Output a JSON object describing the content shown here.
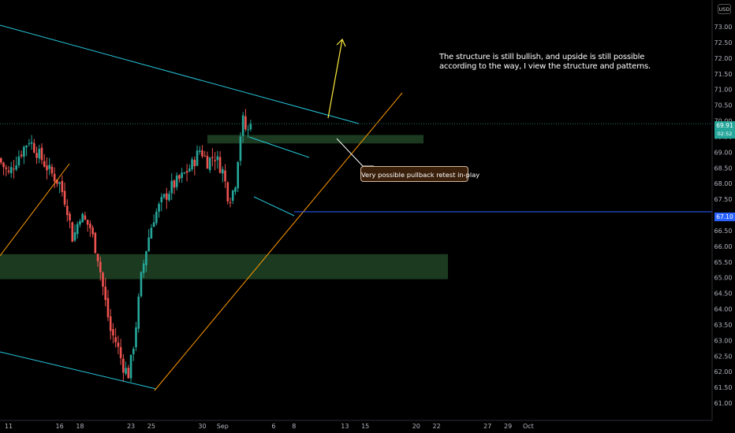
{
  "chart_data": {
    "type": "candlestick",
    "currency": "USD",
    "y_axis": {
      "range": [
        60.75,
        73.5
      ],
      "ticks": [
        "61.00",
        "61.50",
        "62.00",
        "62.50",
        "63.00",
        "63.50",
        "64.00",
        "64.50",
        "65.00",
        "65.50",
        "66.00",
        "66.50",
        "67.00",
        "67.50",
        "68.00",
        "68.50",
        "69.00",
        "69.50",
        "70.00",
        "70.50",
        "71.00",
        "71.50",
        "72.00",
        "72.50",
        "73.00"
      ]
    },
    "x_axis": {
      "labels": [
        {
          "label": "11",
          "day": 11
        },
        {
          "label": "16",
          "day": 16
        },
        {
          "label": "18",
          "day": 18
        },
        {
          "label": "23",
          "day": 23
        },
        {
          "label": "25",
          "day": 25
        },
        {
          "label": "30",
          "day": 30
        },
        {
          "label": "Sep",
          "day": 32
        },
        {
          "label": "6",
          "day": 37
        },
        {
          "label": "8",
          "day": 39
        },
        {
          "label": "13",
          "day": 44
        },
        {
          "label": "15",
          "day": 46
        },
        {
          "label": "20",
          "day": 51
        },
        {
          "label": "22",
          "day": 53
        },
        {
          "label": "27",
          "day": 58
        },
        {
          "label": "29",
          "day": 60
        },
        {
          "label": "Oct",
          "day": 62
        }
      ]
    },
    "current_price": {
      "value": "69.91",
      "countdown": "02:52"
    },
    "level_marker": {
      "value": "67.10"
    },
    "annotation_main": "The structure is still bullish, and upside is still possible according to the way, I view the structure and patterns.",
    "annotation_callout": "Very possible pullback retest in-play",
    "colors": {
      "up": "#26a69a",
      "down": "#ef5350",
      "channel": "#26c6da",
      "trend": "#ff9800",
      "arrow": "#ffeb3b",
      "level": "#2962ff",
      "zone": "#1b3a1f"
    },
    "ohlc_anchors": [
      {
        "day": 10.0,
        "close": 68.8
      },
      {
        "day": 11.0,
        "close": 68.3
      },
      {
        "day": 12.0,
        "close": 68.9
      },
      {
        "day": 13.0,
        "close": 69.4
      },
      {
        "day": 14.0,
        "close": 68.9
      },
      {
        "day": 15.0,
        "close": 68.4
      },
      {
        "day": 16.0,
        "close": 68.0
      },
      {
        "day": 16.7,
        "close": 67.3
      },
      {
        "day": 17.3,
        "close": 66.2
      },
      {
        "day": 18.0,
        "close": 67.0
      },
      {
        "day": 19.0,
        "close": 66.6
      },
      {
        "day": 19.8,
        "close": 65.6
      },
      {
        "day": 20.4,
        "close": 64.4
      },
      {
        "day": 21.0,
        "close": 63.3
      },
      {
        "day": 21.6,
        "close": 62.9
      },
      {
        "day": 22.2,
        "close": 62.2
      },
      {
        "day": 22.8,
        "close": 61.9
      },
      {
        "day": 23.4,
        "close": 63.2
      },
      {
        "day": 24.0,
        "close": 65.0
      },
      {
        "day": 24.6,
        "close": 66.1
      },
      {
        "day": 25.2,
        "close": 66.9
      },
      {
        "day": 26.0,
        "close": 67.4
      },
      {
        "day": 27.0,
        "close": 67.9
      },
      {
        "day": 28.0,
        "close": 68.2
      },
      {
        "day": 29.0,
        "close": 68.6
      },
      {
        "day": 29.8,
        "close": 69.1
      },
      {
        "day": 30.5,
        "close": 68.7
      },
      {
        "day": 31.2,
        "close": 68.9
      },
      {
        "day": 32.0,
        "close": 68.4
      },
      {
        "day": 32.6,
        "close": 67.5
      },
      {
        "day": 33.2,
        "close": 67.9
      },
      {
        "day": 33.7,
        "close": 69.5
      },
      {
        "day": 34.0,
        "close": 70.0
      },
      {
        "day": 34.4,
        "close": 69.6
      },
      {
        "day": 34.8,
        "close": 69.91
      }
    ]
  }
}
